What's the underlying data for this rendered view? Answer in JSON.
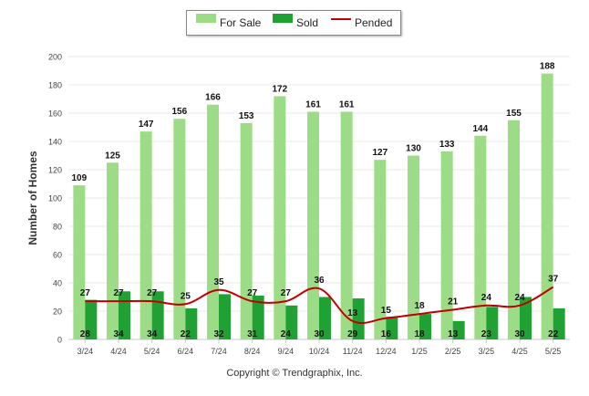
{
  "chart_data": {
    "type": "bar",
    "categories": [
      "3/24",
      "4/24",
      "5/24",
      "6/24",
      "7/24",
      "8/24",
      "9/24",
      "10/24",
      "11/24",
      "12/24",
      "1/25",
      "2/25",
      "3/25",
      "4/25",
      "5/25"
    ],
    "series": [
      {
        "name": "For Sale",
        "type": "bar",
        "color": "#9ddc86",
        "values": [
          109,
          125,
          147,
          156,
          166,
          153,
          172,
          161,
          161,
          127,
          130,
          133,
          144,
          155,
          188
        ]
      },
      {
        "name": "Sold",
        "type": "bar",
        "color": "#1fa233",
        "values": [
          28,
          34,
          34,
          22,
          32,
          31,
          24,
          30,
          29,
          16,
          18,
          13,
          23,
          30,
          22
        ]
      },
      {
        "name": "Pended",
        "type": "line",
        "color": "#c00000",
        "values": [
          27,
          27,
          27,
          25,
          35,
          27,
          27,
          36,
          13,
          15,
          18,
          21,
          24,
          24,
          37
        ]
      }
    ],
    "ylabel": "Number of Homes",
    "ylim": [
      0,
      200
    ],
    "yticks": [
      0,
      20,
      40,
      60,
      80,
      100,
      120,
      140,
      160,
      180,
      200
    ],
    "grid": true,
    "legend_position": "top-center"
  },
  "legend": {
    "for_sale": "For Sale",
    "sold": "Sold",
    "pended": "Pended"
  },
  "copyright": "Copyright © Trendgraphix, Inc."
}
